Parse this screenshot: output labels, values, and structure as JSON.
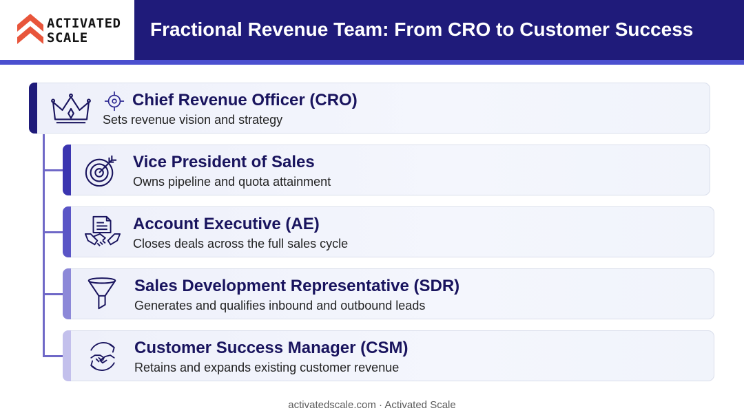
{
  "brand": {
    "logo_line1": "ACTIVATED",
    "logo_line2": "SCALE"
  },
  "title": "Fractional Revenue Team: From CRO to Customer Success",
  "roles": [
    {
      "title": "Chief Revenue Officer (CRO)",
      "description": "Sets revenue vision and strategy",
      "icon": "crown-icon"
    },
    {
      "title": "Vice President of Sales",
      "description": "Owns pipeline and quota attainment",
      "icon": "target-icon"
    },
    {
      "title": "Account Executive (AE)",
      "description": "Closes deals across the full sales cycle",
      "icon": "handshake-contract-icon"
    },
    {
      "title": "Sales Development Representative (SDR)",
      "description": "Generates and qualifies inbound and outbound leads",
      "icon": "funnel-icon"
    },
    {
      "title": "Customer Success Manager (CSM)",
      "description": "Retains and expands existing customer revenue",
      "icon": "handshake-cycle-icon"
    }
  ],
  "footer": "activatedscale.com · Activated Scale",
  "colors": {
    "header_bg": "#1f1b7a",
    "accent": "#4b4fcf",
    "logo": "#e8553b",
    "role_text": "#19145e"
  }
}
